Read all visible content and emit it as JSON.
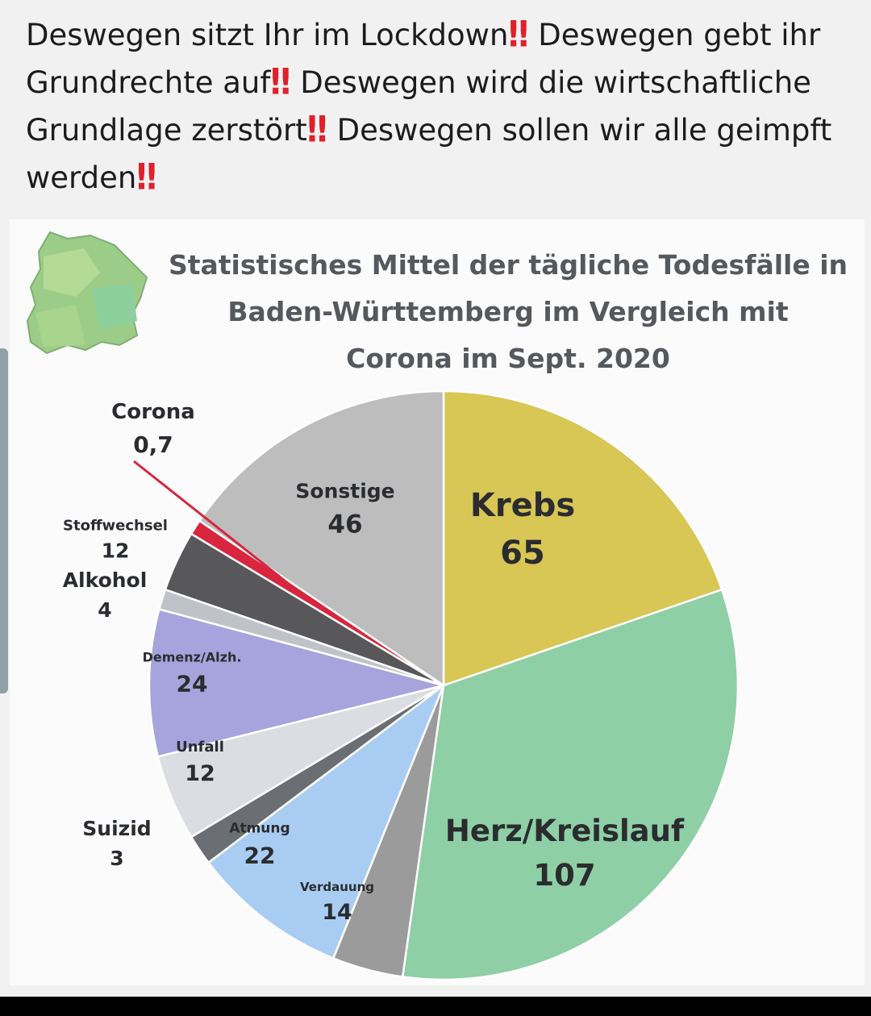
{
  "post": {
    "seg1": "Deswegen sitzt Ihr im Lockdown",
    "seg2": "Deswegen gebt ihr Grundrechte auf",
    "seg3": "Deswegen wird die wirtschaftliche Grundlage zerstört",
    "seg4": "Deswegen sollen wir alle geimpft werden",
    "emphasis": "‼"
  },
  "chart_data": {
    "type": "pie",
    "title_lines": [
      "Statistisches Mittel der tägliche Todesfälle in",
      "Baden-Württemberg im Vergleich mit",
      "Corona im Sept. 2020"
    ],
    "slices": [
      {
        "name": "Krebs",
        "value": "65",
        "color": "#d8c655"
      },
      {
        "name": "Herz/Kreislauf",
        "value": "107",
        "color": "#8fcfa6"
      },
      {
        "name": "Verdauung",
        "value": "14",
        "color": "#9b9b9b"
      },
      {
        "name": "Atmung",
        "value": "22",
        "color": "#a9cdf2"
      },
      {
        "name": "Suizid",
        "value": "3",
        "color": "#6b6e73"
      },
      {
        "name": "Unfall",
        "value": "12",
        "color": "#dcdde2"
      },
      {
        "name": "Demenz/Alzh.",
        "value": "24",
        "color": "#a7a3dc"
      },
      {
        "name": "Alkohol",
        "value": "4",
        "color": "#bfc3c7"
      },
      {
        "name": "Stoffwechsel",
        "value": "12",
        "color": "#58585a"
      },
      {
        "name": "Corona",
        "value": "0,7",
        "color": "#d7263d"
      },
      {
        "name": "Sonstige",
        "value": "46",
        "color": "#bdbdbd"
      }
    ]
  }
}
